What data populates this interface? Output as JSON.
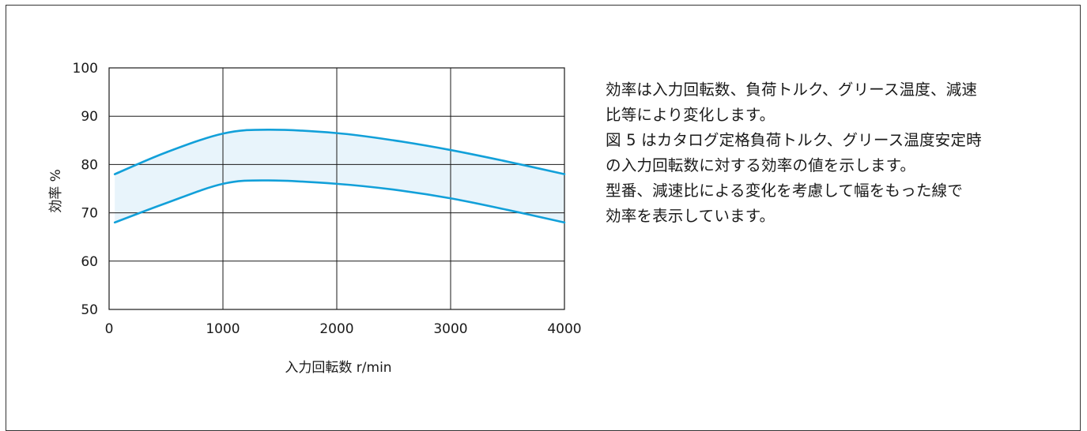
{
  "chart_data": {
    "type": "area",
    "xlabel": "入力回転数  r/min",
    "ylabel": "効率 %",
    "xlim": [
      0,
      4000
    ],
    "ylim": [
      50,
      100
    ],
    "x_ticks": [
      0,
      1000,
      2000,
      3000,
      4000
    ],
    "y_ticks": [
      50,
      60,
      70,
      80,
      90,
      100
    ],
    "grid": true,
    "colors": {
      "line": "#12a0d9",
      "band": "#e8f4fb",
      "grid": "#1a1a1a"
    },
    "series": [
      {
        "x": [
          50,
          500,
          1000,
          1400,
          2000,
          2500,
          3000,
          3500,
          4000
        ],
        "values": [
          78,
          82.5,
          86.4,
          87.2,
          86.5,
          85.0,
          83.0,
          80.6,
          78.0
        ]
      },
      {
        "x": [
          50,
          500,
          1000,
          1400,
          2000,
          2500,
          3000,
          3500,
          4000
        ],
        "values": [
          68,
          72.0,
          76.0,
          76.7,
          76.0,
          74.8,
          73.0,
          70.6,
          68.0
        ]
      }
    ]
  },
  "description": [
    "効率は入力回転数、負荷トルク、グリース温度、減速",
    "比等により変化します。",
    "図 5 はカタログ定格負荷トルク、グリース温度安定時",
    "の入力回転数に対する効率の値を示します。",
    "型番、減速比による変化を考慮して幅をもった線で",
    "効率を表示しています。"
  ]
}
